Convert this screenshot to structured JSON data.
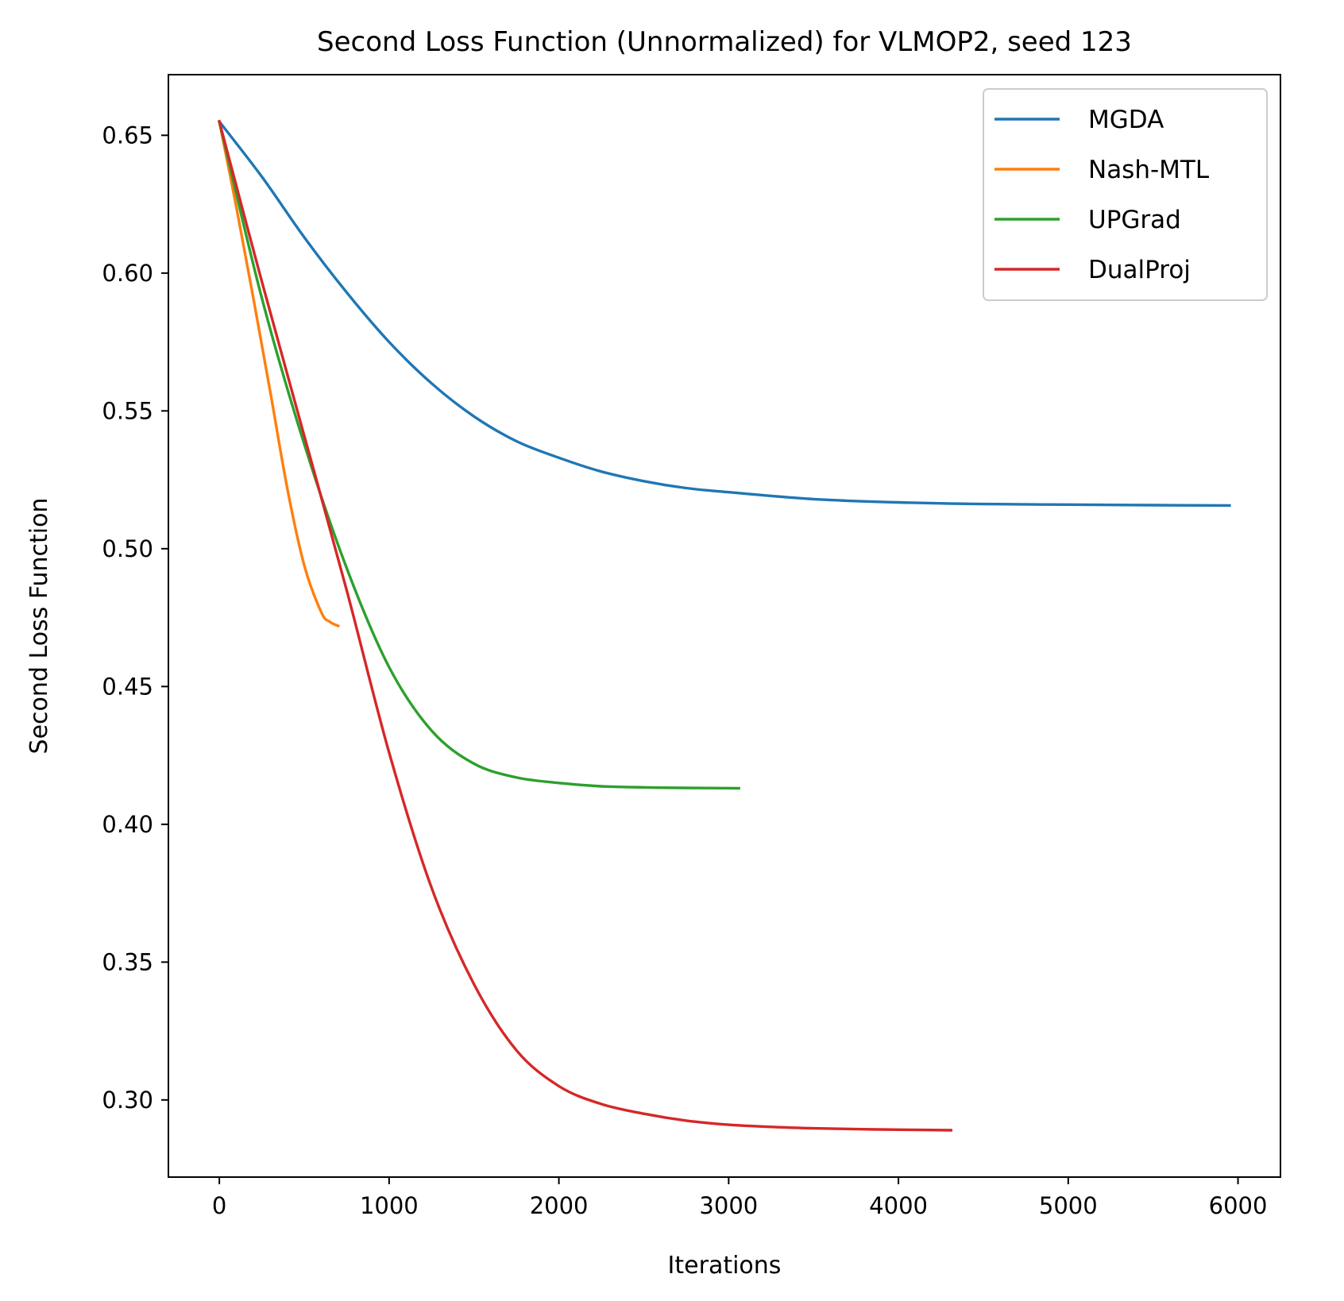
{
  "chart_data": {
    "type": "line",
    "title": "Second Loss Function (Unnormalized) for VLMOP2, seed 123",
    "xlabel": "Iterations",
    "ylabel": "Second Loss Function",
    "xlim": [
      -300,
      6250
    ],
    "ylim": [
      0.272,
      0.672
    ],
    "xticks": [
      0,
      1000,
      2000,
      3000,
      4000,
      5000,
      6000
    ],
    "xtick_labels": [
      "0",
      "1000",
      "2000",
      "3000",
      "4000",
      "5000",
      "6000"
    ],
    "yticks": [
      0.3,
      0.35,
      0.4,
      0.45,
      0.5,
      0.55,
      0.6,
      0.65
    ],
    "ytick_labels": [
      "0.30",
      "0.35",
      "0.40",
      "0.45",
      "0.50",
      "0.55",
      "0.60",
      "0.65"
    ],
    "grid": false,
    "legend_position": "top-right",
    "series": [
      {
        "name": "MGDA",
        "color": "#1f77b4",
        "x": [
          0,
          250,
          500,
          750,
          1000,
          1250,
          1500,
          1750,
          2000,
          2250,
          2500,
          2750,
          3000,
          3500,
          4000,
          4500,
          5000,
          5500,
          5950
        ],
        "y": [
          0.655,
          0.635,
          0.613,
          0.593,
          0.575,
          0.56,
          0.548,
          0.539,
          0.533,
          0.528,
          0.5245,
          0.522,
          0.5205,
          0.518,
          0.5168,
          0.5162,
          0.516,
          0.5158,
          0.5157
        ]
      },
      {
        "name": "Nash-MTL",
        "color": "#ff7f0e",
        "x": [
          0,
          100,
          200,
          300,
          400,
          500,
          600,
          650,
          700
        ],
        "y": [
          0.655,
          0.624,
          0.591,
          0.557,
          0.522,
          0.494,
          0.477,
          0.4735,
          0.472
        ]
      },
      {
        "name": "UPGrad",
        "color": "#2ca02c",
        "x": [
          0,
          250,
          500,
          750,
          1000,
          1250,
          1500,
          1750,
          2000,
          2250,
          2500,
          2750,
          3060
        ],
        "y": [
          0.655,
          0.591,
          0.538,
          0.493,
          0.457,
          0.434,
          0.422,
          0.417,
          0.415,
          0.4138,
          0.4134,
          0.4132,
          0.4131
        ]
      },
      {
        "name": "DualProj",
        "color": "#d62728",
        "x": [
          0,
          250,
          500,
          750,
          1000,
          1250,
          1500,
          1750,
          2000,
          2250,
          2500,
          2750,
          3000,
          3250,
          3500,
          3750,
          4000,
          4310
        ],
        "y": [
          0.655,
          0.597,
          0.541,
          0.485,
          0.426,
          0.377,
          0.342,
          0.318,
          0.305,
          0.2985,
          0.295,
          0.2925,
          0.291,
          0.2902,
          0.2897,
          0.2894,
          0.2892,
          0.289
        ]
      }
    ]
  }
}
